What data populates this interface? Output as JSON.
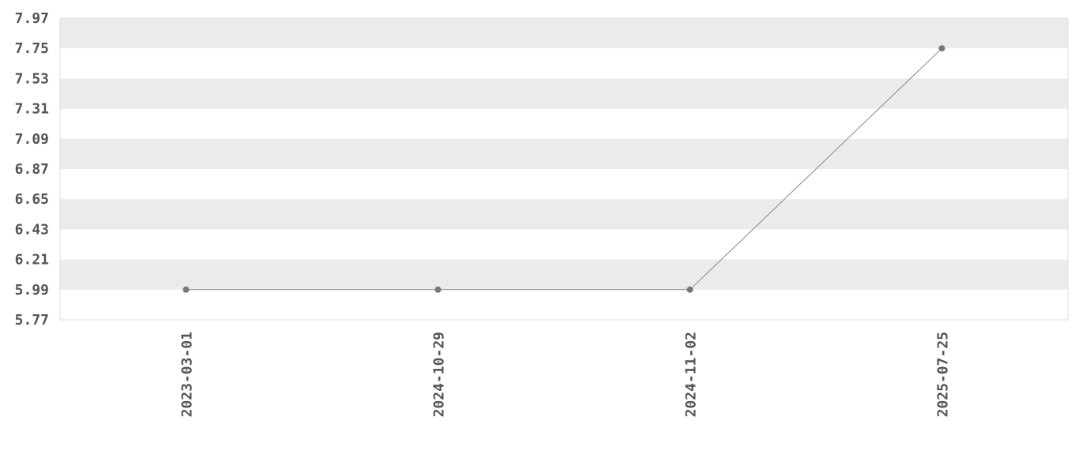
{
  "chart_data": {
    "type": "line",
    "title": "",
    "xlabel": "",
    "ylabel": "",
    "categories": [
      "2023-03-01",
      "2024-10-29",
      "2024-11-02",
      "2025-07-25"
    ],
    "series": [
      {
        "values": [
          5.99,
          5.99,
          5.99,
          7.75
        ]
      }
    ],
    "ylim": [
      5.77,
      7.97
    ],
    "yticks": [
      "5.77",
      "5.99",
      "6.21",
      "6.43",
      "6.65",
      "6.87",
      "7.09",
      "7.31",
      "7.53",
      "7.75",
      "7.97"
    ],
    "grid": "alternating horizontal bands",
    "legend": "none",
    "colors": {
      "line": "#888888",
      "marker": "#777777",
      "band": "#ebebeb",
      "border": "#dddddd",
      "text": "#555555"
    }
  }
}
